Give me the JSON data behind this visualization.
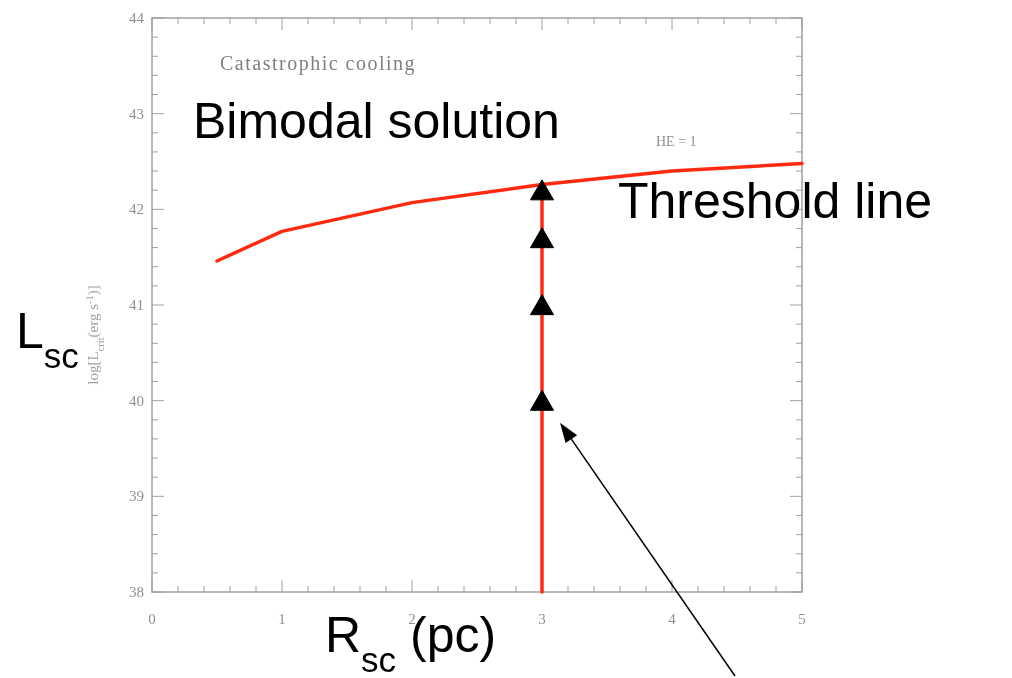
{
  "chart_data": {
    "type": "line",
    "xlabel": "R$_{sc}$ (pc)",
    "ylabel": "L$_{sc}$",
    "annotations": [
      "Catastrophic cooling",
      "Bimodal solution",
      "HE = 1",
      "Threshold line",
      "log[L$_{crit}$(erg s$^{-1}$)]"
    ],
    "xlim": [
      0,
      5
    ],
    "ylim": [
      38,
      44
    ],
    "xticks": [
      0,
      1,
      2,
      3,
      4,
      5
    ],
    "yticks": [
      38,
      39,
      40,
      41,
      42,
      43,
      44
    ],
    "grid": false,
    "series": [
      {
        "color": "#ff2a10",
        "x": [
          0.5,
          1,
          2,
          3,
          4,
          5
        ],
        "values": [
          41.46,
          41.77,
          42.07,
          42.26,
          42.4,
          42.48
        ],
        "marker": "none"
      },
      {
        "color": "#ff2a10",
        "x": [
          3,
          3
        ],
        "values": [
          38,
          42.2
        ],
        "marker": "none"
      },
      {
        "type": "scatter",
        "color": "#000000",
        "x": [
          3,
          3,
          3,
          3
        ],
        "values": [
          42.2,
          41.7,
          41.0,
          40.0
        ],
        "marker": "triangle"
      }
    ]
  }
}
